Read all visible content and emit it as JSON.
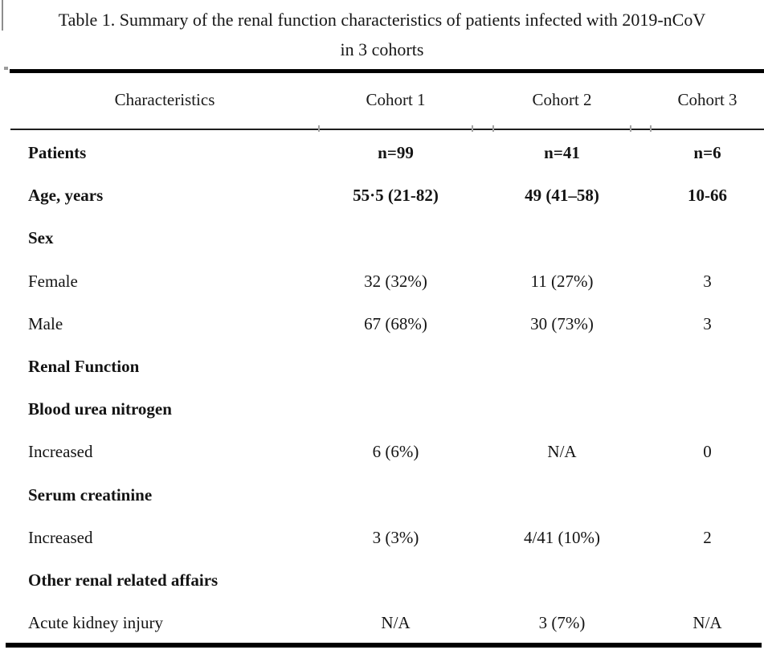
{
  "title": {
    "line1": "Table 1. Summary of the renal function characteristics of patients infected with 2019-nCoV",
    "line2": "in 3 cohorts"
  },
  "table": {
    "headers": [
      "Characteristics",
      "Cohort 1",
      "Cohort 2",
      "Cohort 3"
    ],
    "rows": [
      {
        "label": "Patients",
        "bold": true,
        "values": [
          "n=99",
          "n=41",
          "n=6"
        ]
      },
      {
        "label": "Age, years",
        "bold": true,
        "values": [
          "55·5 (21-82)",
          "49 (41–58)",
          "10-66"
        ]
      },
      {
        "label": "Sex",
        "bold": true,
        "values": [
          "",
          "",
          ""
        ]
      },
      {
        "label": "Female",
        "bold": false,
        "values": [
          "32 (32%)",
          "11 (27%)",
          "3"
        ]
      },
      {
        "label": "Male",
        "bold": false,
        "values": [
          "67 (68%)",
          "30 (73%)",
          "3"
        ]
      },
      {
        "label": "Renal Function",
        "bold": true,
        "values": [
          "",
          "",
          ""
        ]
      },
      {
        "label": "Blood urea nitrogen",
        "bold": true,
        "values": [
          "",
          "",
          ""
        ]
      },
      {
        "label": "Increased",
        "bold": false,
        "values": [
          "6 (6%)",
          "N/A",
          "0"
        ]
      },
      {
        "label": "Serum creatinine",
        "bold": true,
        "values": [
          "",
          "",
          ""
        ]
      },
      {
        "label": "Increased",
        "bold": false,
        "values": [
          "3 (3%)",
          "4/41 (10%)",
          "2"
        ]
      },
      {
        "label": "Other renal related affairs",
        "bold": true,
        "values": [
          "",
          "",
          ""
        ]
      },
      {
        "label": "Acute kidney injury",
        "bold": false,
        "values": [
          "N/A",
          "3 (7%)",
          "N/A"
        ]
      }
    ]
  },
  "colors": {
    "text": "#141414",
    "rule": "#000000"
  }
}
